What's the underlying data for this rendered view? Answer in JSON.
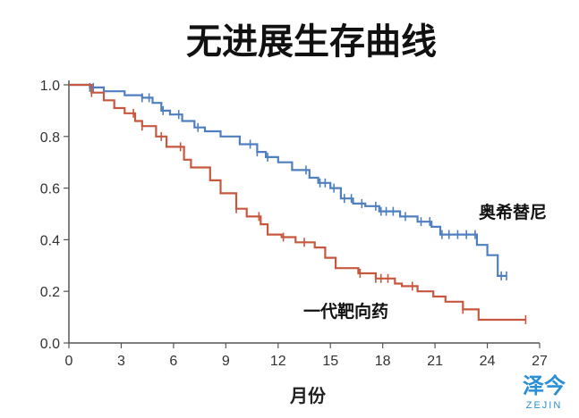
{
  "chart_data": {
    "type": "line",
    "title": "无进展生存曲线",
    "xlabel": "月份",
    "ylabel": "",
    "xlim": [
      0,
      27
    ],
    "ylim": [
      0,
      1
    ],
    "xticks": [
      "0",
      "3",
      "6",
      "9",
      "12",
      "15",
      "18",
      "21",
      "24",
      "27"
    ],
    "yticks": [
      "0.0",
      "0.2",
      "0.4",
      "0.6",
      "0.8",
      "1.0"
    ],
    "grid": false,
    "series": [
      {
        "name": "奥希替尼",
        "color": "#4f7fbf",
        "steps": [
          [
            0,
            1.0
          ],
          [
            1.2,
            0.99
          ],
          [
            2,
            0.975
          ],
          [
            3.2,
            0.96
          ],
          [
            4.2,
            0.95
          ],
          [
            4.8,
            0.93
          ],
          [
            5.3,
            0.9
          ],
          [
            5.8,
            0.885
          ],
          [
            6.5,
            0.86
          ],
          [
            7.2,
            0.835
          ],
          [
            7.8,
            0.82
          ],
          [
            8.7,
            0.8
          ],
          [
            9.8,
            0.77
          ],
          [
            10.8,
            0.74
          ],
          [
            11.3,
            0.72
          ],
          [
            12,
            0.7
          ],
          [
            12.8,
            0.67
          ],
          [
            13.8,
            0.64
          ],
          [
            14.3,
            0.62
          ],
          [
            15,
            0.6
          ],
          [
            15.6,
            0.56
          ],
          [
            16.3,
            0.54
          ],
          [
            17,
            0.53
          ],
          [
            17.8,
            0.51
          ],
          [
            19,
            0.49
          ],
          [
            20,
            0.47
          ],
          [
            20.8,
            0.45
          ],
          [
            21.3,
            0.42
          ],
          [
            23.4,
            0.38
          ],
          [
            24,
            0.34
          ],
          [
            24.6,
            0.26
          ],
          [
            25.1,
            0.26
          ]
        ],
        "censor_marks": [
          1.2,
          1.4,
          4.2,
          4.6,
          5.4,
          6.3,
          7.4,
          10.4,
          10.8,
          11.4,
          13.6,
          14.4,
          14.7,
          15.2,
          15.8,
          16.2,
          16.8,
          17.6,
          17.9,
          18.2,
          18.6,
          19.3,
          20.2,
          20.7,
          21.4,
          21.8,
          22.3,
          22.8,
          23.3,
          24.8,
          25.1
        ]
      },
      {
        "name": "一代靶向药",
        "color": "#c8573f",
        "steps": [
          [
            0,
            1.0
          ],
          [
            1.3,
            0.97
          ],
          [
            2,
            0.94
          ],
          [
            2.6,
            0.91
          ],
          [
            3.2,
            0.89
          ],
          [
            3.8,
            0.86
          ],
          [
            4.2,
            0.84
          ],
          [
            5,
            0.8
          ],
          [
            5.6,
            0.76
          ],
          [
            6.6,
            0.71
          ],
          [
            7,
            0.68
          ],
          [
            8.1,
            0.63
          ],
          [
            8.7,
            0.58
          ],
          [
            9.6,
            0.52
          ],
          [
            10.2,
            0.49
          ],
          [
            11,
            0.46
          ],
          [
            11.4,
            0.42
          ],
          [
            12.2,
            0.41
          ],
          [
            13,
            0.39
          ],
          [
            14.1,
            0.37
          ],
          [
            14.7,
            0.33
          ],
          [
            15.3,
            0.29
          ],
          [
            16.6,
            0.27
          ],
          [
            17.6,
            0.25
          ],
          [
            18.7,
            0.23
          ],
          [
            19.1,
            0.22
          ],
          [
            20,
            0.2
          ],
          [
            20.9,
            0.18
          ],
          [
            21.6,
            0.16
          ],
          [
            22.6,
            0.13
          ],
          [
            23.5,
            0.09
          ],
          [
            26.2,
            0.09
          ]
        ],
        "censor_marks": [
          1.3,
          3.7,
          4.2,
          5.3,
          6.4,
          9.6,
          10.9,
          12.3,
          13.5,
          16.7,
          17.6,
          17.9,
          18.3,
          19.7,
          22.6,
          26.2
        ]
      }
    ]
  },
  "logo": {
    "main": "泽今",
    "sub": "ZEJIN"
  }
}
